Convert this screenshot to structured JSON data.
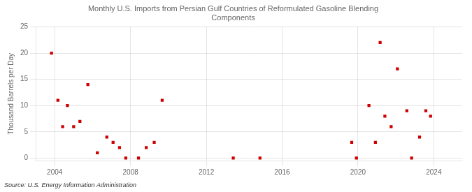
{
  "chart_data": {
    "type": "scatter",
    "title": "Monthly U.S. Imports from Persian Gulf Countries of Reformulated Gasoline Blending\nComponents",
    "ylabel": "Thousand Barrels per Day",
    "annotations": [
      "Source: U.S. Energy Information Administration"
    ],
    "color": "#cc0000",
    "marker": "square",
    "grid": true,
    "xlim": [
      2003.0,
      2025.5
    ],
    "ylim": [
      -0.5,
      25
    ],
    "xticks": [
      2004,
      2008,
      2012,
      2016,
      2020,
      2024
    ],
    "yticks": [
      0,
      5,
      10,
      15,
      20,
      25
    ],
    "x": [
      2003.83,
      2004.17,
      2004.42,
      2004.67,
      2005.0,
      2005.33,
      2005.75,
      2006.25,
      2006.75,
      2007.08,
      2007.42,
      2007.75,
      2008.42,
      2008.83,
      2009.25,
      2009.67,
      2013.42,
      2014.83,
      2019.67,
      2019.92,
      2020.58,
      2020.92,
      2021.17,
      2021.42,
      2021.75,
      2022.08,
      2022.58,
      2022.83,
      2023.25,
      2023.58,
      2023.83
    ],
    "values": [
      20,
      11,
      6,
      10,
      6,
      7,
      14,
      1,
      4,
      3,
      2,
      0,
      0,
      2,
      3,
      11,
      0,
      0,
      3,
      0,
      10,
      3,
      22,
      8,
      6,
      17,
      9,
      0,
      4,
      9,
      8
    ]
  }
}
